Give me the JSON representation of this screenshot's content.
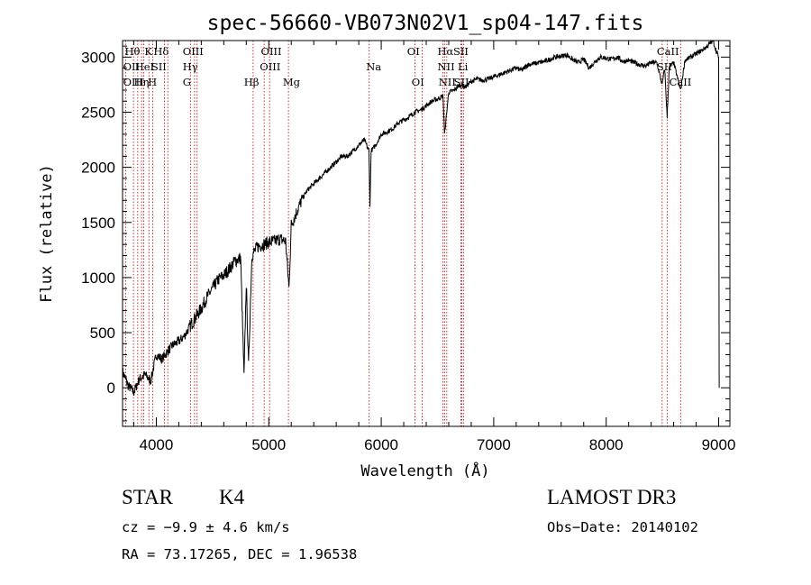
{
  "chart_data": {
    "type": "line",
    "title": "spec-56660-VB073N02V1_sp04-147.fits",
    "xlabel": "Wavelength (Å)",
    "ylabel": "Flux (relative)",
    "xlim": [
      3700,
      9100
    ],
    "ylim": [
      -350,
      3150
    ],
    "x_ticks": [
      4000,
      5000,
      6000,
      7000,
      8000,
      9000
    ],
    "x_tick_labels": [
      "4000",
      "5000",
      "6000",
      "7000",
      "8000",
      "9000"
    ],
    "y_ticks": [
      0,
      500,
      1000,
      1500,
      2000,
      2500,
      3000
    ],
    "y_tick_labels": [
      "0",
      "500",
      "1000",
      "1500",
      "2000",
      "2500",
      "3000"
    ],
    "series": [
      {
        "x": [
          3700,
          3750,
          3800,
          3850,
          3900,
          3950,
          4000,
          4050,
          4100,
          4150,
          4200,
          4250,
          4300,
          4350,
          4400,
          4450,
          4500,
          4550,
          4600,
          4650,
          4700,
          4750,
          4780,
          4800,
          4820,
          4850,
          4900,
          4950,
          5000,
          5050,
          5100,
          5150,
          5180,
          5200,
          5250,
          5300,
          5350,
          5400,
          5450,
          5500,
          5550,
          5600,
          5650,
          5700,
          5750,
          5800,
          5850,
          5890,
          5900,
          5910,
          5950,
          6000,
          6050,
          6100,
          6150,
          6200,
          6250,
          6300,
          6350,
          6400,
          6450,
          6500,
          6550,
          6563,
          6600,
          6650,
          6700,
          6750,
          6800,
          6850,
          6900,
          6950,
          7000,
          7050,
          7100,
          7150,
          7200,
          7250,
          7300,
          7350,
          7400,
          7450,
          7500,
          7550,
          7600,
          7650,
          7700,
          7750,
          7800,
          7850,
          7900,
          7950,
          8000,
          8050,
          8100,
          8150,
          8200,
          8250,
          8300,
          8350,
          8400,
          8450,
          8498,
          8520,
          8542,
          8560,
          8600,
          8662,
          8700,
          8750,
          8800,
          8850,
          8900,
          8950,
          8980,
          9000,
          9005
        ],
        "y": [
          150,
          20,
          -40,
          80,
          120,
          60,
          300,
          260,
          330,
          390,
          420,
          470,
          560,
          640,
          720,
          820,
          900,
          980,
          1020,
          1080,
          1150,
          1180,
          100,
          950,
          200,
          1200,
          1280,
          1300,
          1320,
          1330,
          1350,
          1330,
          900,
          1480,
          1600,
          1720,
          1800,
          1850,
          1900,
          1950,
          2000,
          2050,
          2100,
          2100,
          2150,
          2200,
          2250,
          2150,
          1650,
          2150,
          2200,
          2300,
          2320,
          2350,
          2400,
          2430,
          2460,
          2500,
          2520,
          2560,
          2600,
          2620,
          2650,
          2300,
          2680,
          2700,
          2750,
          2730,
          2780,
          2800,
          2790,
          2800,
          2820,
          2840,
          2860,
          2880,
          2900,
          2880,
          2930,
          2940,
          2950,
          2960,
          2980,
          3000,
          3010,
          3020,
          2980,
          2950,
          2980,
          2900,
          2960,
          3000,
          2990,
          2980,
          3000,
          2960,
          2970,
          2950,
          2930,
          2920,
          2950,
          2950,
          2750,
          2900,
          2450,
          2900,
          2950,
          2700,
          2970,
          3000,
          3030,
          3060,
          3100,
          3150,
          3050,
          3000,
          0
        ]
      }
    ],
    "lines": [
      {
        "label": "Hθ",
        "x": 3797
      },
      {
        "label": "OII",
        "x": 3727
      },
      {
        "label": "OIII",
        "x": 3869
      },
      {
        "label": "HeI",
        "x": 3889
      },
      {
        "label": "K",
        "x": 3934
      },
      {
        "label": "H",
        "x": 3969
      },
      {
        "label": "Hη",
        "x": 3835
      },
      {
        "label": "Hδ",
        "x": 4102
      },
      {
        "label": "SII",
        "x": 4072
      },
      {
        "label": "OIII",
        "x": 4363
      },
      {
        "label": "Hγ",
        "x": 4340
      },
      {
        "label": "G",
        "x": 4304
      },
      {
        "label": "OIII",
        "x": 5007
      },
      {
        "label": "OIII",
        "x": 4959
      },
      {
        "label": "Hβ",
        "x": 4861
      },
      {
        "label": "Mg",
        "x": 5175
      },
      {
        "label": "Na",
        "x": 5893
      },
      {
        "label": "OI",
        "x": 6300
      },
      {
        "label": "OI",
        "x": 6364
      },
      {
        "label": "Hα",
        "x": 6563
      },
      {
        "label": "NII",
        "x": 6583
      },
      {
        "label": "NII",
        "x": 6548
      },
      {
        "label": "SII",
        "x": 6716
      },
      {
        "label": "SII",
        "x": 6731
      },
      {
        "label": "Li",
        "x": 6708
      },
      {
        "label": "CaII",
        "x": 8542
      },
      {
        "label": "CaII",
        "x": 8498
      },
      {
        "label": "CaII",
        "x": 8662
      }
    ],
    "line_labels": [
      {
        "text": "Hθ",
        "x": 3720,
        "row": 0
      },
      {
        "text": "K",
        "x": 3895,
        "row": 0
      },
      {
        "text": "Hδ",
        "x": 3975,
        "row": 0
      },
      {
        "text": "OIII",
        "x": 4235,
        "row": 0
      },
      {
        "text": "OIII",
        "x": 4930,
        "row": 0
      },
      {
        "text": "OI",
        "x": 6230,
        "row": 0
      },
      {
        "text": "Hα",
        "x": 6500,
        "row": 0
      },
      {
        "text": "SII",
        "x": 6640,
        "row": 0
      },
      {
        "text": "CaII",
        "x": 8450,
        "row": 0
      },
      {
        "text": "OII",
        "x": 3705,
        "row": 1
      },
      {
        "text": "HeI",
        "x": 3810,
        "row": 1
      },
      {
        "text": "SII",
        "x": 3955,
        "row": 1
      },
      {
        "text": "Hγ",
        "x": 4235,
        "row": 1
      },
      {
        "text": "OIII",
        "x": 4920,
        "row": 1
      },
      {
        "text": "Na",
        "x": 5865,
        "row": 1
      },
      {
        "text": "NII",
        "x": 6500,
        "row": 1
      },
      {
        "text": "Li",
        "x": 6680,
        "row": 1
      },
      {
        "text": "SII",
        "x": 8450,
        "row": 1
      },
      {
        "text": "OIII",
        "x": 3705,
        "row": 2
      },
      {
        "text": "Hη",
        "x": 3800,
        "row": 2
      },
      {
        "text": "H",
        "x": 3925,
        "row": 2
      },
      {
        "text": "G",
        "x": 4235,
        "row": 2
      },
      {
        "text": "Hβ",
        "x": 4780,
        "row": 2
      },
      {
        "text": "Mg",
        "x": 5125,
        "row": 2
      },
      {
        "text": "OI",
        "x": 6270,
        "row": 2
      },
      {
        "text": "NII",
        "x": 6510,
        "row": 2
      },
      {
        "text": "SII",
        "x": 6645,
        "row": 2
      },
      {
        "text": "CaII",
        "x": 8560,
        "row": 2
      }
    ],
    "grid": false,
    "legend": "none"
  },
  "info": {
    "class": "STAR",
    "subclass": "K4",
    "survey": "LAMOST DR3",
    "cz": "cz = −9.9 ± 4.6 km/s",
    "obs_date": "Obs−Date: 20140102",
    "coords": "RA =  73.17265, DEC =   1.96538"
  },
  "colors": {
    "spectrum": "#000000",
    "line_markers": "#c00000",
    "axes": "#000000",
    "background": "#ffffff"
  }
}
